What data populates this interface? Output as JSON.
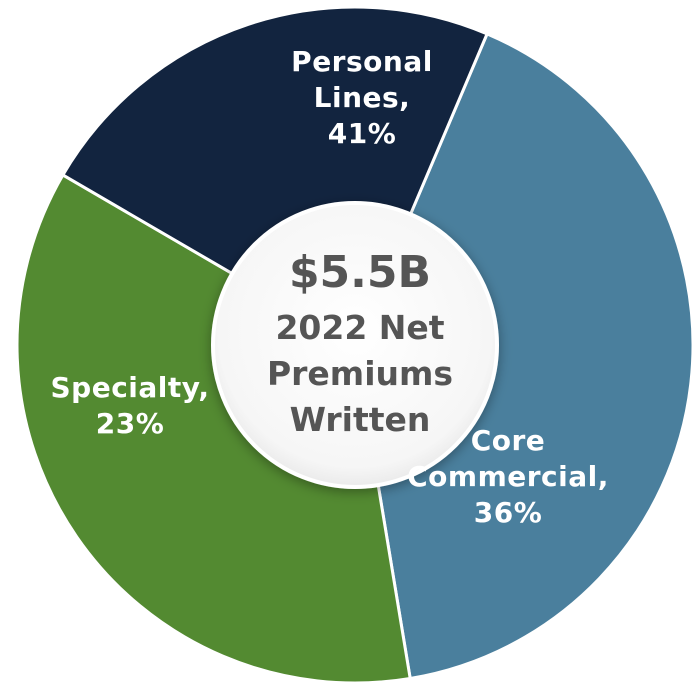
{
  "chart_data": {
    "type": "pie",
    "variant": "donut",
    "center_label": {
      "value": "$5.5B",
      "lines": [
        "2022 Net",
        "Premiums",
        "Written"
      ]
    },
    "slices": [
      {
        "label_lines": [
          "Personal",
          "Lines,",
          "41%"
        ],
        "category": "Personal Lines",
        "value": 41,
        "color": "#4A7F9D"
      },
      {
        "label_lines": [
          "Core",
          "Commercial,",
          "36%"
        ],
        "category": "Core Commercial",
        "value": 36,
        "color": "#538A31"
      },
      {
        "label_lines": [
          "Specialty,",
          "23%"
        ],
        "category": "Specialty",
        "value": 23,
        "color": "#12243F"
      }
    ],
    "legend": "none",
    "title": ""
  }
}
